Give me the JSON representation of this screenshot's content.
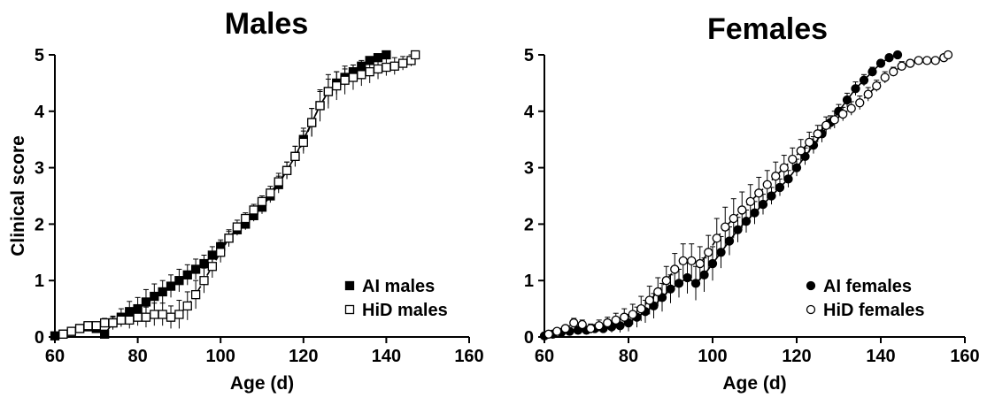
{
  "figure": {
    "shared_ylabel": "Clinical  score",
    "xlabel": "Age (d)"
  },
  "chart_data": [
    {
      "type": "scatter",
      "title": "Males",
      "xlabel": "Age (d)",
      "ylabel": "Clinical  score",
      "xlim": [
        60,
        160
      ],
      "ylim": [
        0,
        5
      ],
      "xticks": [
        "60",
        "80",
        "100",
        "120",
        "140",
        "160"
      ],
      "yticks": [
        "0",
        "1",
        "2",
        "3",
        "4",
        "5"
      ],
      "grid": false,
      "legend_position": "bottom-right",
      "series": [
        {
          "name": "AI males",
          "marker": "filled-square",
          "x": [
            60,
            62,
            64,
            66,
            68,
            70,
            72,
            74,
            76,
            78,
            80,
            82,
            84,
            86,
            88,
            90,
            92,
            94,
            96,
            98,
            100,
            102,
            104,
            106,
            108,
            110,
            112,
            114,
            116,
            118,
            120,
            122,
            124,
            126,
            128,
            130,
            132,
            134,
            136,
            138,
            140
          ],
          "y": [
            0.02,
            0.05,
            0.1,
            0.15,
            0.18,
            0.15,
            0.05,
            0.25,
            0.35,
            0.45,
            0.5,
            0.62,
            0.72,
            0.8,
            0.9,
            1.0,
            1.1,
            1.2,
            1.3,
            1.45,
            1.6,
            1.75,
            1.9,
            2.0,
            2.15,
            2.3,
            2.5,
            2.7,
            2.95,
            3.2,
            3.5,
            3.8,
            4.1,
            4.35,
            4.5,
            4.6,
            4.7,
            4.8,
            4.9,
            4.95,
            5.0
          ],
          "error": [
            0.02,
            0.03,
            0.04,
            0.05,
            0.06,
            0.06,
            0.06,
            0.12,
            0.15,
            0.18,
            0.2,
            0.22,
            0.22,
            0.2,
            0.2,
            0.2,
            0.18,
            0.18,
            0.15,
            0.15,
            0.12,
            0.12,
            0.1,
            0.1,
            0.1,
            0.12,
            0.12,
            0.15,
            0.15,
            0.18,
            0.2,
            0.25,
            0.25,
            0.22,
            0.2,
            0.15,
            0.12,
            0.1,
            0.06,
            0.04,
            0.02
          ]
        },
        {
          "name": "HiD males",
          "marker": "open-square",
          "x": [
            62,
            64,
            66,
            68,
            70,
            72,
            74,
            76,
            78,
            80,
            82,
            84,
            86,
            88,
            90,
            92,
            94,
            96,
            98,
            100,
            102,
            104,
            106,
            108,
            110,
            112,
            114,
            116,
            118,
            120,
            122,
            124,
            126,
            128,
            130,
            132,
            134,
            136,
            138,
            140,
            142,
            144,
            146,
            147
          ],
          "y": [
            0.05,
            0.1,
            0.15,
            0.2,
            0.2,
            0.25,
            0.25,
            0.3,
            0.3,
            0.35,
            0.35,
            0.4,
            0.4,
            0.35,
            0.4,
            0.55,
            0.75,
            1.0,
            1.25,
            1.5,
            1.75,
            1.95,
            2.1,
            2.25,
            2.4,
            2.55,
            2.75,
            2.95,
            3.2,
            3.45,
            3.8,
            4.1,
            4.35,
            4.45,
            4.55,
            4.6,
            4.65,
            4.7,
            4.75,
            4.78,
            4.8,
            4.85,
            4.9,
            5.0
          ],
          "error": [
            0.03,
            0.04,
            0.05,
            0.06,
            0.06,
            0.08,
            0.1,
            0.12,
            0.15,
            0.15,
            0.18,
            0.2,
            0.2,
            0.2,
            0.25,
            0.25,
            0.25,
            0.22,
            0.2,
            0.18,
            0.15,
            0.12,
            0.1,
            0.1,
            0.1,
            0.12,
            0.15,
            0.15,
            0.18,
            0.2,
            0.25,
            0.28,
            0.3,
            0.25,
            0.25,
            0.22,
            0.2,
            0.2,
            0.18,
            0.15,
            0.15,
            0.12,
            0.1,
            0.05
          ]
        }
      ]
    },
    {
      "type": "scatter",
      "title": "Females",
      "xlabel": "Age (d)",
      "ylabel": "",
      "xlim": [
        60,
        160
      ],
      "ylim": [
        0,
        5
      ],
      "xticks": [
        "60",
        "80",
        "100",
        "120",
        "140",
        "160"
      ],
      "yticks": [
        "0",
        "1",
        "2",
        "3",
        "4",
        "5"
      ],
      "grid": false,
      "legend_position": "bottom-right",
      "series": [
        {
          "name": "AI females",
          "marker": "filled-circle",
          "x": [
            60,
            62,
            64,
            66,
            68,
            70,
            72,
            74,
            76,
            78,
            80,
            82,
            84,
            86,
            88,
            90,
            92,
            94,
            96,
            98,
            100,
            102,
            104,
            106,
            108,
            110,
            112,
            114,
            116,
            118,
            120,
            122,
            124,
            126,
            128,
            130,
            132,
            134,
            136,
            138,
            140,
            142,
            144
          ],
          "y": [
            0.02,
            0.05,
            0.08,
            0.1,
            0.12,
            0.12,
            0.15,
            0.15,
            0.18,
            0.2,
            0.25,
            0.35,
            0.45,
            0.55,
            0.7,
            0.85,
            0.95,
            1.05,
            0.95,
            1.1,
            1.3,
            1.5,
            1.7,
            1.9,
            2.05,
            2.2,
            2.35,
            2.5,
            2.65,
            2.8,
            3.0,
            3.2,
            3.4,
            3.6,
            3.8,
            4.0,
            4.2,
            4.4,
            4.55,
            4.7,
            4.85,
            4.95,
            5.0
          ],
          "error": [
            0.02,
            0.03,
            0.04,
            0.05,
            0.06,
            0.06,
            0.06,
            0.08,
            0.1,
            0.12,
            0.15,
            0.18,
            0.2,
            0.22,
            0.25,
            0.25,
            0.25,
            0.28,
            0.3,
            0.3,
            0.3,
            0.28,
            0.25,
            0.22,
            0.2,
            0.2,
            0.18,
            0.15,
            0.15,
            0.15,
            0.15,
            0.15,
            0.15,
            0.15,
            0.12,
            0.12,
            0.12,
            0.12,
            0.1,
            0.08,
            0.06,
            0.04,
            0.02
          ]
        },
        {
          "name": "HiD females",
          "marker": "open-circle",
          "x": [
            61,
            63,
            65,
            67,
            69,
            71,
            73,
            75,
            77,
            79,
            81,
            83,
            85,
            87,
            89,
            91,
            93,
            95,
            97,
            99,
            101,
            103,
            105,
            107,
            109,
            111,
            113,
            115,
            117,
            119,
            121,
            123,
            125,
            127,
            129,
            131,
            133,
            135,
            137,
            139,
            141,
            143,
            145,
            147,
            149,
            151,
            153,
            155,
            156
          ],
          "y": [
            0.05,
            0.1,
            0.15,
            0.25,
            0.22,
            0.15,
            0.2,
            0.25,
            0.3,
            0.35,
            0.4,
            0.5,
            0.65,
            0.8,
            1.0,
            1.2,
            1.35,
            1.35,
            1.3,
            1.5,
            1.75,
            1.95,
            2.1,
            2.25,
            2.4,
            2.55,
            2.7,
            2.85,
            3.0,
            3.15,
            3.3,
            3.45,
            3.6,
            3.75,
            3.85,
            3.95,
            4.05,
            4.15,
            4.3,
            4.45,
            4.6,
            4.7,
            4.8,
            4.85,
            4.9,
            4.9,
            4.9,
            4.95,
            5.0
          ],
          "error": [
            0.03,
            0.04,
            0.05,
            0.08,
            0.08,
            0.08,
            0.1,
            0.1,
            0.12,
            0.15,
            0.18,
            0.22,
            0.25,
            0.25,
            0.25,
            0.28,
            0.3,
            0.3,
            0.3,
            0.3,
            0.35,
            0.35,
            0.35,
            0.32,
            0.3,
            0.28,
            0.25,
            0.25,
            0.22,
            0.2,
            0.2,
            0.18,
            0.15,
            0.15,
            0.15,
            0.12,
            0.12,
            0.12,
            0.12,
            0.1,
            0.1,
            0.08,
            0.08,
            0.06,
            0.05,
            0.05,
            0.04,
            0.03,
            0.02
          ]
        }
      ]
    }
  ]
}
